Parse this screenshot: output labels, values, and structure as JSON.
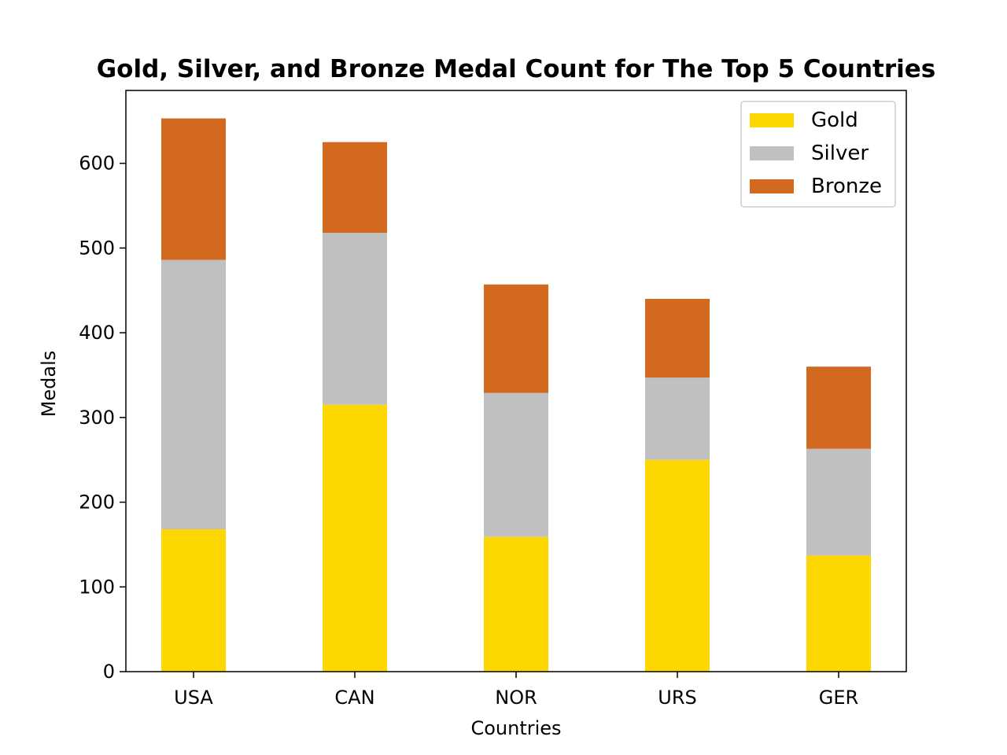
{
  "chart_data": {
    "type": "bar",
    "stacked": true,
    "title": "Gold, Silver, and Bronze Medal Count for The Top 5 Countries",
    "xlabel": "Countries",
    "ylabel": "Medals",
    "categories": [
      "USA",
      "CAN",
      "NOR",
      "URS",
      "GER"
    ],
    "series": [
      {
        "name": "Gold",
        "color": "#FFD700",
        "values": [
          168,
          315,
          159,
          250,
          137
        ]
      },
      {
        "name": "Silver",
        "color": "#C0C0C0",
        "values": [
          318,
          203,
          170,
          97,
          126
        ]
      },
      {
        "name": "Bronze",
        "color": "#D2691E",
        "values": [
          167,
          107,
          128,
          93,
          97
        ]
      }
    ],
    "ylim": [
      0,
      686
    ],
    "yticks": [
      0,
      100,
      200,
      300,
      400,
      500,
      600
    ],
    "legend_position": "top-right",
    "grid": false
  }
}
